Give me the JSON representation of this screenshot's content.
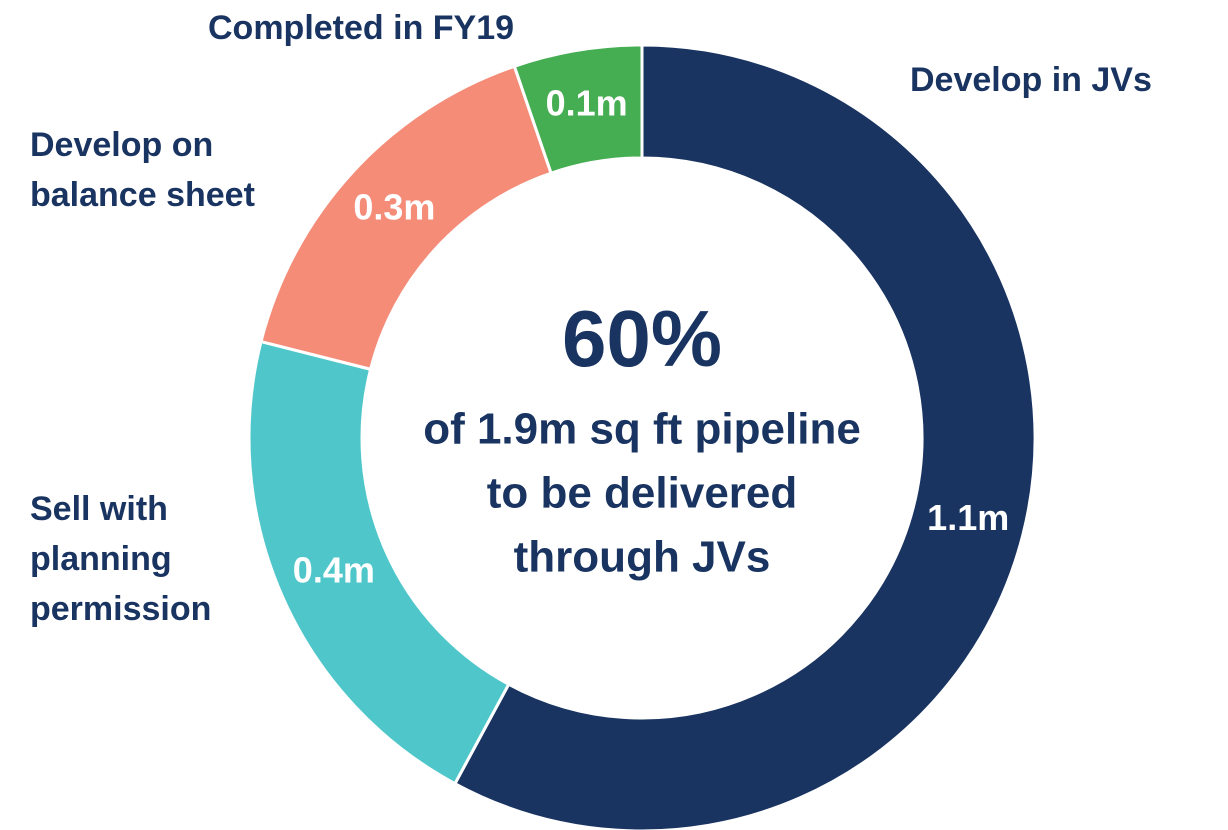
{
  "chart_data": {
    "type": "donut",
    "categories": [
      "Develop in JVs",
      "Sell with planning permission",
      "Develop on balance sheet",
      "Completed in FY19"
    ],
    "values": [
      1.1,
      0.4,
      0.3,
      0.1
    ],
    "value_labels": [
      "1.1m",
      "0.4m",
      "0.3m",
      "0.1m"
    ],
    "colors": [
      "#1a3461",
      "#4fc7ca",
      "#f48c78",
      "#45ad52"
    ],
    "annotations": [
      "60%",
      "of 1.9m sq ft pipeline",
      "to be delivered",
      "through JVs"
    ]
  }
}
